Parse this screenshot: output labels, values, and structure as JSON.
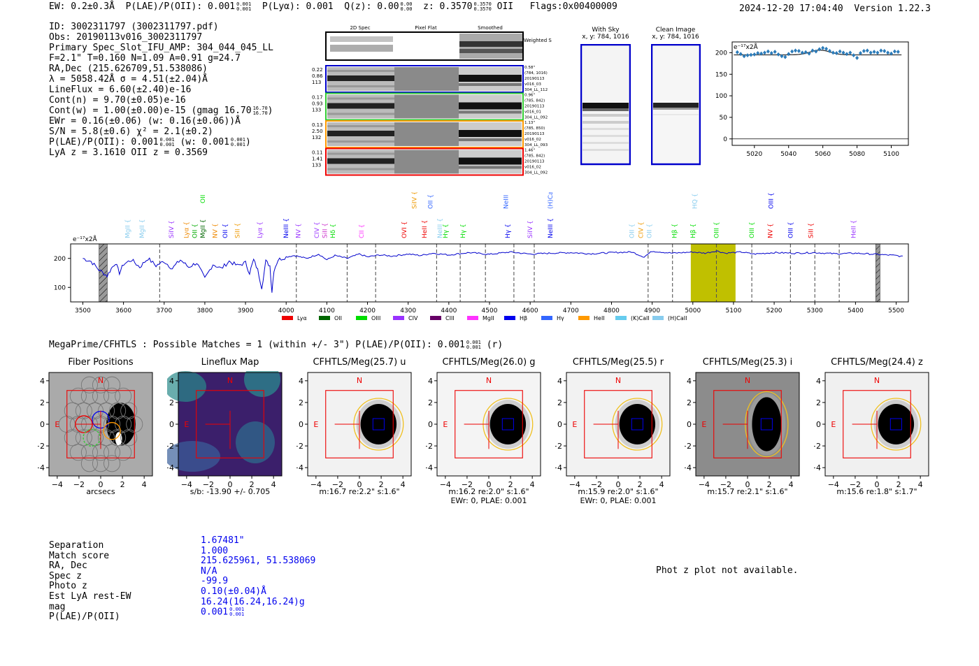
{
  "header": {
    "ew": "EW: 0.2±0.3Å",
    "plae": "P(LAE)/P(OII): 0.001",
    "plae_hi": "0.001",
    "plae_lo": "0.001",
    "plya": "P(Lyα): 0.001",
    "qz": "Q(z): 0.00",
    "qz_hi": "0.00",
    "qz_lo": "0.00",
    "z": "z: 0.3570",
    "z_hi": "0.3570",
    "z_lo": "0.3570",
    "z_line": "OII",
    "flags": "Flags:0x00400009",
    "datetime": "2024-12-20 17:04:40",
    "version": "Version 1.22.3"
  },
  "info": {
    "id": "ID: 3002311797 (3002311797.pdf)",
    "obs": "Obs: 20190113v016_3002311797",
    "primary": "Primary Spec_Slot_IFU_AMP: 304_044_045_LL",
    "fit": "F=2.1\"  T=0.160  N=1.09  A=0.91  g=24.7",
    "radec": "RA,Dec (215.626709,51.538086)",
    "lambda": "λ = 5058.42Å   σ = 4.51(±2.04)Å",
    "lineflux": "LineFlux = 6.60(±2.40)e-16",
    "contn": "Cont(n) = 9.70(±0.05)e-16",
    "contw": "Cont(w) = 1.00(±0.00)e-15 (gmag 16.70",
    "contw_hi": "16.70",
    "contw_lo": "16.70",
    "ewr": "EWr = 0.16(±0.06) (w: 0.16(±0.06))Å",
    "sn": "S/N = 5.8(±0.6)  χ² = 2.1(±0.2)",
    "plae": "P(LAE)/P(OII): 0.001",
    "plae_hi": "0.001",
    "plae_lo": "0.001",
    "plae_w": "(w: 0.001",
    "plae_w_hi": "0.001",
    "plae_w_lo": "0.001",
    "lyaz": "LyA z = 3.1610   OII z = 0.3569"
  },
  "spec2d": {
    "headers": [
      "2D Spec",
      "Pixel Flat",
      "Smoothed"
    ],
    "weighted_label": "Weighted Sum",
    "rows": [
      {
        "left": [
          "0.22",
          "0.86",
          "113"
        ],
        "right": [
          "0.58\"",
          "(784, 1016)",
          "20190113",
          "v016_03",
          "304_LL_112"
        ],
        "color": "#0000cc"
      },
      {
        "left": [
          "0.17",
          "0.93",
          "133"
        ],
        "right": [
          "0.96\"",
          "(785, 842)",
          "20190113",
          "v016_01",
          "304_LL_092"
        ],
        "color": "#33cc33"
      },
      {
        "left": [
          "0.13",
          "2.50",
          "132"
        ],
        "right": [
          "1.13\"",
          "(785, 850)",
          "20190113",
          "v016_02",
          "304_LL_093"
        ],
        "color": "#ff9900"
      },
      {
        "left": [
          "0.11",
          "1.41",
          "133"
        ],
        "right": [
          "1.46\"",
          "(785, 842)",
          "20190113",
          "v016_02",
          "304_LL_092"
        ],
        "color": "#ee0000"
      }
    ]
  },
  "withsky": {
    "title": "With Sky",
    "coords": "x, y: 784, 1016"
  },
  "clean": {
    "title": "Clean Image",
    "coords": "x, y: 784, 1016"
  },
  "zoom_units": "e⁻¹⁷x2Å",
  "full_units": "e⁻¹⁷x2Å",
  "megaprime": {
    "text": "MegaPrime/CFHTLS : Possible Matches = 1 (within +/- 3\")  P(LAE)/P(OII): 0.001",
    "hi": "0.001",
    "lo": "0.001",
    "suffix": "(r)"
  },
  "cutouts": [
    {
      "title": "Fiber Positions",
      "cap1": "arcsecs",
      "cap2": "",
      "bg": "#aaaaaa"
    },
    {
      "title": "Lineflux Map",
      "cap1": "s/b: -13.90 +/- 0.705",
      "cap2": "",
      "bg": "#3b1f6b"
    },
    {
      "title": "CFHTLS/Meg(25.7) u",
      "cap1": "m:16.7  re:2.2\"  s:1.6\"",
      "cap2": "",
      "bg": "#f2f2f2"
    },
    {
      "title": "CFHTLS/Meg(26.0) g",
      "cap1": "m:16.2  re:2.0\"  s:1.6\"",
      "cap2": "EWr: 0, PLAE: 0.001",
      "bg": "#f4f4f4"
    },
    {
      "title": "CFHTLS/Meg(25.5) r",
      "cap1": "m:15.9  re:2.0\"  s:1.6\"",
      "cap2": "EWr: 0, PLAE: 0.001",
      "bg": "#f2f2f2"
    },
    {
      "title": "CFHTLS/Meg(25.3) i",
      "cap1": "m:15.7  re:2.1\"  s:1.6\"",
      "cap2": "",
      "bg": "#8c8c8c"
    },
    {
      "title": "CFHTLS/Meg(24.4) z",
      "cap1": "m:15.6  re:1.8\"  s:1.7\"",
      "cap2": "",
      "bg": "#f0f0f0"
    }
  ],
  "cutout_ticks": [
    "4",
    "2",
    "0",
    "−2",
    "−4"
  ],
  "cutout_xticks": [
    "−4",
    "−2",
    "0",
    "2",
    "4"
  ],
  "compass": {
    "n": "N",
    "e": "E"
  },
  "match": {
    "labels": [
      "Separation",
      "Match score",
      "RA, Dec",
      "Spec z",
      "Photo z",
      "Est LyA rest-EW",
      "mag",
      "P(LAE)/P(OII)"
    ],
    "values": [
      "1.67481\"",
      "1.000",
      "215.625961, 51.538069",
      "N/A",
      "-99.9",
      "0.10(±0.04)Å",
      "16.24(16.24,16.24)g",
      "0.001"
    ],
    "plae_hi": "0.001",
    "plae_lo": "0.001"
  },
  "photz_note": "Phot z plot not available.",
  "chart_data": [
    {
      "type": "scatter",
      "title": "",
      "ylabel": "e⁻¹⁷x2Å",
      "xlim": [
        5007,
        5110
      ],
      "ylim": [
        -15,
        225
      ],
      "xticks": [
        5020,
        5040,
        5060,
        5080,
        5100
      ],
      "yticks": [
        0,
        50,
        100,
        150,
        200
      ],
      "points_x": [
        5010,
        5012,
        5014,
        5016,
        5018,
        5020,
        5022,
        5024,
        5026,
        5028,
        5030,
        5032,
        5034,
        5036,
        5038,
        5040,
        5042,
        5044,
        5046,
        5048,
        5050,
        5052,
        5054,
        5056,
        5058,
        5060,
        5062,
        5064,
        5066,
        5068,
        5070,
        5072,
        5074,
        5076,
        5078,
        5080,
        5082,
        5084,
        5086,
        5088,
        5090,
        5092,
        5094,
        5096,
        5098,
        5100,
        5102,
        5104
      ],
      "points_y": [
        201,
        197,
        192,
        194,
        195,
        196,
        199,
        198,
        200,
        203,
        199,
        202,
        196,
        192,
        190,
        197,
        203,
        205,
        204,
        200,
        201,
        198,
        205,
        203,
        208,
        211,
        209,
        204,
        200,
        199,
        203,
        200,
        197,
        200,
        194,
        188,
        199,
        204,
        205,
        200,
        202,
        200,
        205,
        204,
        200,
        198,
        203,
        202
      ],
      "model_line": "gaussian fit: continuum ~195, peak ~206 at 5058.4"
    },
    {
      "type": "line",
      "title": "",
      "ylabel": "e⁻¹⁷x2Å",
      "xlim": [
        3470,
        5530
      ],
      "ylim": [
        50,
        250
      ],
      "xticks": [
        3500,
        3600,
        3700,
        3800,
        3900,
        4000,
        4100,
        4200,
        4300,
        4400,
        4500,
        4600,
        4700,
        4800,
        4900,
        5000,
        5100,
        5200,
        5300,
        5400,
        5500
      ],
      "yticks": [
        100,
        200
      ],
      "series": [
        {
          "name": "spectrum",
          "color": "#0000cc",
          "x": [
            3500,
            3520,
            3540,
            3560,
            3570,
            3580,
            3590,
            3600,
            3620,
            3640,
            3660,
            3680,
            3700,
            3720,
            3740,
            3760,
            3780,
            3800,
            3820,
            3840,
            3860,
            3880,
            3900,
            3910,
            3920,
            3930,
            3940,
            3950,
            3960,
            3965,
            3970,
            3980,
            4000,
            4020,
            4050,
            4080,
            4100,
            4120,
            4150,
            4180,
            4200,
            4230,
            4260,
            4300,
            4330,
            4360,
            4400,
            4450,
            4500,
            4550,
            4600,
            4650,
            4700,
            4750,
            4800,
            4850,
            4880,
            4900,
            4950,
            5000,
            5030,
            5058,
            5080,
            5120,
            5150,
            5200,
            5250,
            5300,
            5350,
            5400,
            5450,
            5500,
            5520
          ],
          "y": [
            200,
            190,
            160,
            140,
            165,
            185,
            150,
            180,
            195,
            170,
            200,
            175,
            190,
            165,
            195,
            170,
            185,
            130,
            180,
            165,
            190,
            175,
            185,
            150,
            195,
            160,
            100,
            190,
            175,
            85,
            160,
            195,
            205,
            210,
            200,
            215,
            195,
            210,
            200,
            215,
            205,
            212,
            208,
            215,
            210,
            218,
            212,
            220,
            214,
            222,
            215,
            218,
            220,
            216,
            220,
            222,
            205,
            225,
            218,
            222,
            218,
            226,
            218,
            222,
            215,
            220,
            218,
            220,
            216,
            218,
            214,
            210,
            205
          ]
        }
      ],
      "shaded_regions": [
        {
          "from": 3540,
          "to": 3560,
          "kind": "masked"
        },
        {
          "from": 4995,
          "to": 5105,
          "kind": "line-window",
          "color": "#c0c000"
        },
        {
          "from": 5450,
          "to": 5460,
          "kind": "masked"
        }
      ],
      "vlines": [
        3689,
        4025,
        4150,
        4220,
        4370,
        4428,
        4490,
        4560,
        4610,
        4890,
        4950,
        5058,
        5145,
        5240,
        5300,
        5360
      ],
      "legend": [
        "Lyα",
        "OII",
        "OIII",
        "CIV",
        "CIII",
        "MgII",
        "Hβ",
        "Hγ",
        "HeII",
        "(K)CaII",
        "(H)CaII"
      ],
      "legend_colors": [
        "#ee0000",
        "#006600",
        "#00dd00",
        "#9933ff",
        "#660066",
        "#ff33ff",
        "#0000ee",
        "#3366ff",
        "#ff9900",
        "#66ccee",
        "#88ccee"
      ],
      "line_labels": [
        {
          "w": 3610,
          "t": "MgII",
          "c": "#88ccee",
          "row": 1
        },
        {
          "w": 3645,
          "t": "MgII",
          "c": "#88ccee",
          "row": 1
        },
        {
          "w": 3718,
          "t": "SiIV",
          "c": "#9933ff",
          "row": 1
        },
        {
          "w": 3755,
          "t": "Lyα",
          "c": "#ee8800",
          "row": 1
        },
        {
          "w": 3775,
          "t": "OII",
          "c": "#00aa00",
          "row": 1
        },
        {
          "w": 3795,
          "t": "MgII",
          "c": "#006600",
          "row": 1
        },
        {
          "w": 3795,
          "t": "OII",
          "c": "#00dd00",
          "row": 3
        },
        {
          "w": 3825,
          "t": "NV",
          "c": "#ee8800",
          "row": 1
        },
        {
          "w": 3850,
          "t": "OII",
          "c": "#0000ee",
          "row": 1
        },
        {
          "w": 3880,
          "t": "SiII",
          "c": "#ee9900",
          "row": 1
        },
        {
          "w": 3935,
          "t": "Lyα",
          "c": "#9933ff",
          "row": 1
        },
        {
          "w": 4000,
          "t": "NeIII",
          "c": "#0000ee",
          "row": 1
        },
        {
          "w": 4030,
          "t": "NV",
          "c": "#9933ff",
          "row": 1
        },
        {
          "w": 4075,
          "t": "CIV",
          "c": "#9933ff",
          "row": 1
        },
        {
          "w": 4095,
          "t": "SiII",
          "c": "#cc33cc",
          "row": 1
        },
        {
          "w": 4115,
          "t": "Hδ",
          "c": "#00dd00",
          "row": 1
        },
        {
          "w": 4185,
          "t": "CII",
          "c": "#ff33ff",
          "row": 1
        },
        {
          "w": 4290,
          "t": "OVI",
          "c": "#ee0000",
          "row": 1
        },
        {
          "w": 4315,
          "t": "SiIV",
          "c": "#ee9900",
          "row": 2
        },
        {
          "w": 4340,
          "t": "HeII",
          "c": "#ee0000",
          "row": 1
        },
        {
          "w": 4355,
          "t": "OII",
          "c": "#3366ff",
          "row": 2
        },
        {
          "w": 4378,
          "t": "NeIII",
          "c": "#88ccee",
          "row": 1
        },
        {
          "w": 4392,
          "t": "Hγ",
          "c": "#00dd00",
          "row": 1
        },
        {
          "w": 4435,
          "t": "Hγ",
          "c": "#00dd00",
          "row": 1
        },
        {
          "w": 4540,
          "t": "NeIII",
          "c": "#3366ff",
          "row": 2
        },
        {
          "w": 4545,
          "t": "Hγ",
          "c": "#0000ee",
          "row": 1
        },
        {
          "w": 4600,
          "t": "SiIV",
          "c": "#9933ff",
          "row": 1
        },
        {
          "w": 4650,
          "t": "NeIII",
          "c": "#0000ee",
          "row": 1
        },
        {
          "w": 4650,
          "t": "(H)CaII",
          "c": "#3366ff",
          "row": 2
        },
        {
          "w": 4850,
          "t": "OII",
          "c": "#88ccee",
          "row": 1
        },
        {
          "w": 4872,
          "t": "CIV",
          "c": "#ee9900",
          "row": 1
        },
        {
          "w": 4893,
          "t": "OII",
          "c": "#88ccee",
          "row": 1
        },
        {
          "w": 4955,
          "t": "Hβ",
          "c": "#00dd00",
          "row": 1
        },
        {
          "w": 5000,
          "t": "Hβ",
          "c": "#00dd00",
          "row": 1
        },
        {
          "w": 5005,
          "t": "HQ",
          "c": "#88ccee",
          "row": 2
        },
        {
          "w": 5058,
          "t": "OIII",
          "c": "#00dd00",
          "row": 1
        },
        {
          "w": 5145,
          "t": "OIII",
          "c": "#00dd00",
          "row": 1
        },
        {
          "w": 5190,
          "t": "NV",
          "c": "#ee0000",
          "row": 1
        },
        {
          "w": 5192,
          "t": "OIII",
          "c": "#0000ee",
          "row": 2
        },
        {
          "w": 5240,
          "t": "OIII",
          "c": "#0000ee",
          "row": 1
        },
        {
          "w": 5290,
          "t": "SiII",
          "c": "#ee0000",
          "row": 1
        },
        {
          "w": 5395,
          "t": "HeII",
          "c": "#9933ff",
          "row": 1
        }
      ]
    }
  ]
}
